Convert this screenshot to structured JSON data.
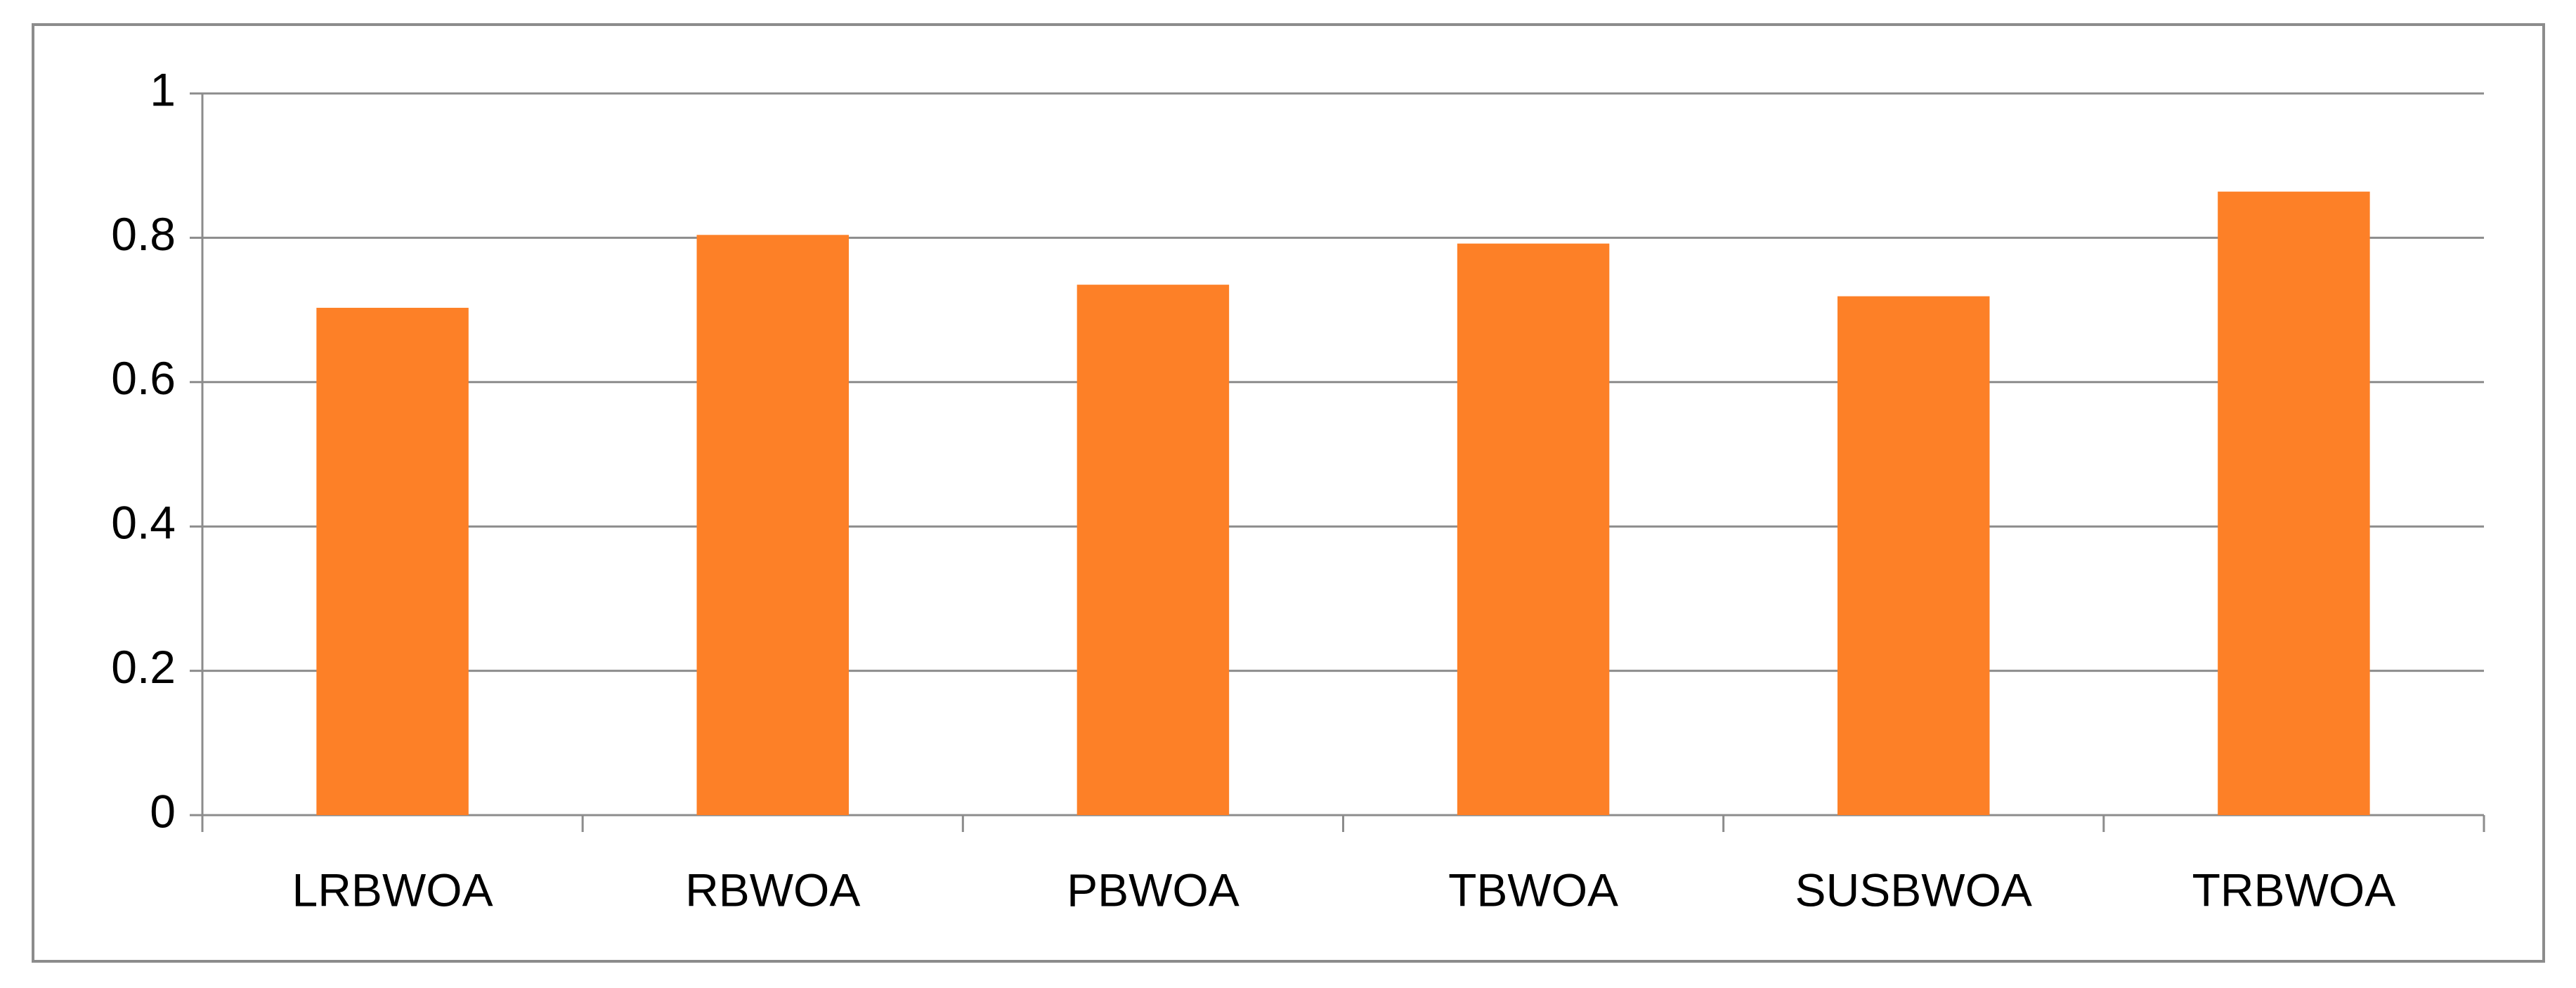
{
  "chart_data": {
    "type": "bar",
    "categories": [
      "LRBWOA",
      "RBWOA",
      "PBWOA",
      "TBWOA",
      "SUSBWOA",
      "TRBWOA"
    ],
    "values": [
      0.703,
      0.804,
      0.735,
      0.792,
      0.719,
      0.864
    ],
    "color": "#fd8027",
    "ylim": [
      0,
      1
    ],
    "yticks": [
      0,
      0.2,
      0.4,
      0.6,
      0.8,
      1
    ],
    "grid": true
  }
}
